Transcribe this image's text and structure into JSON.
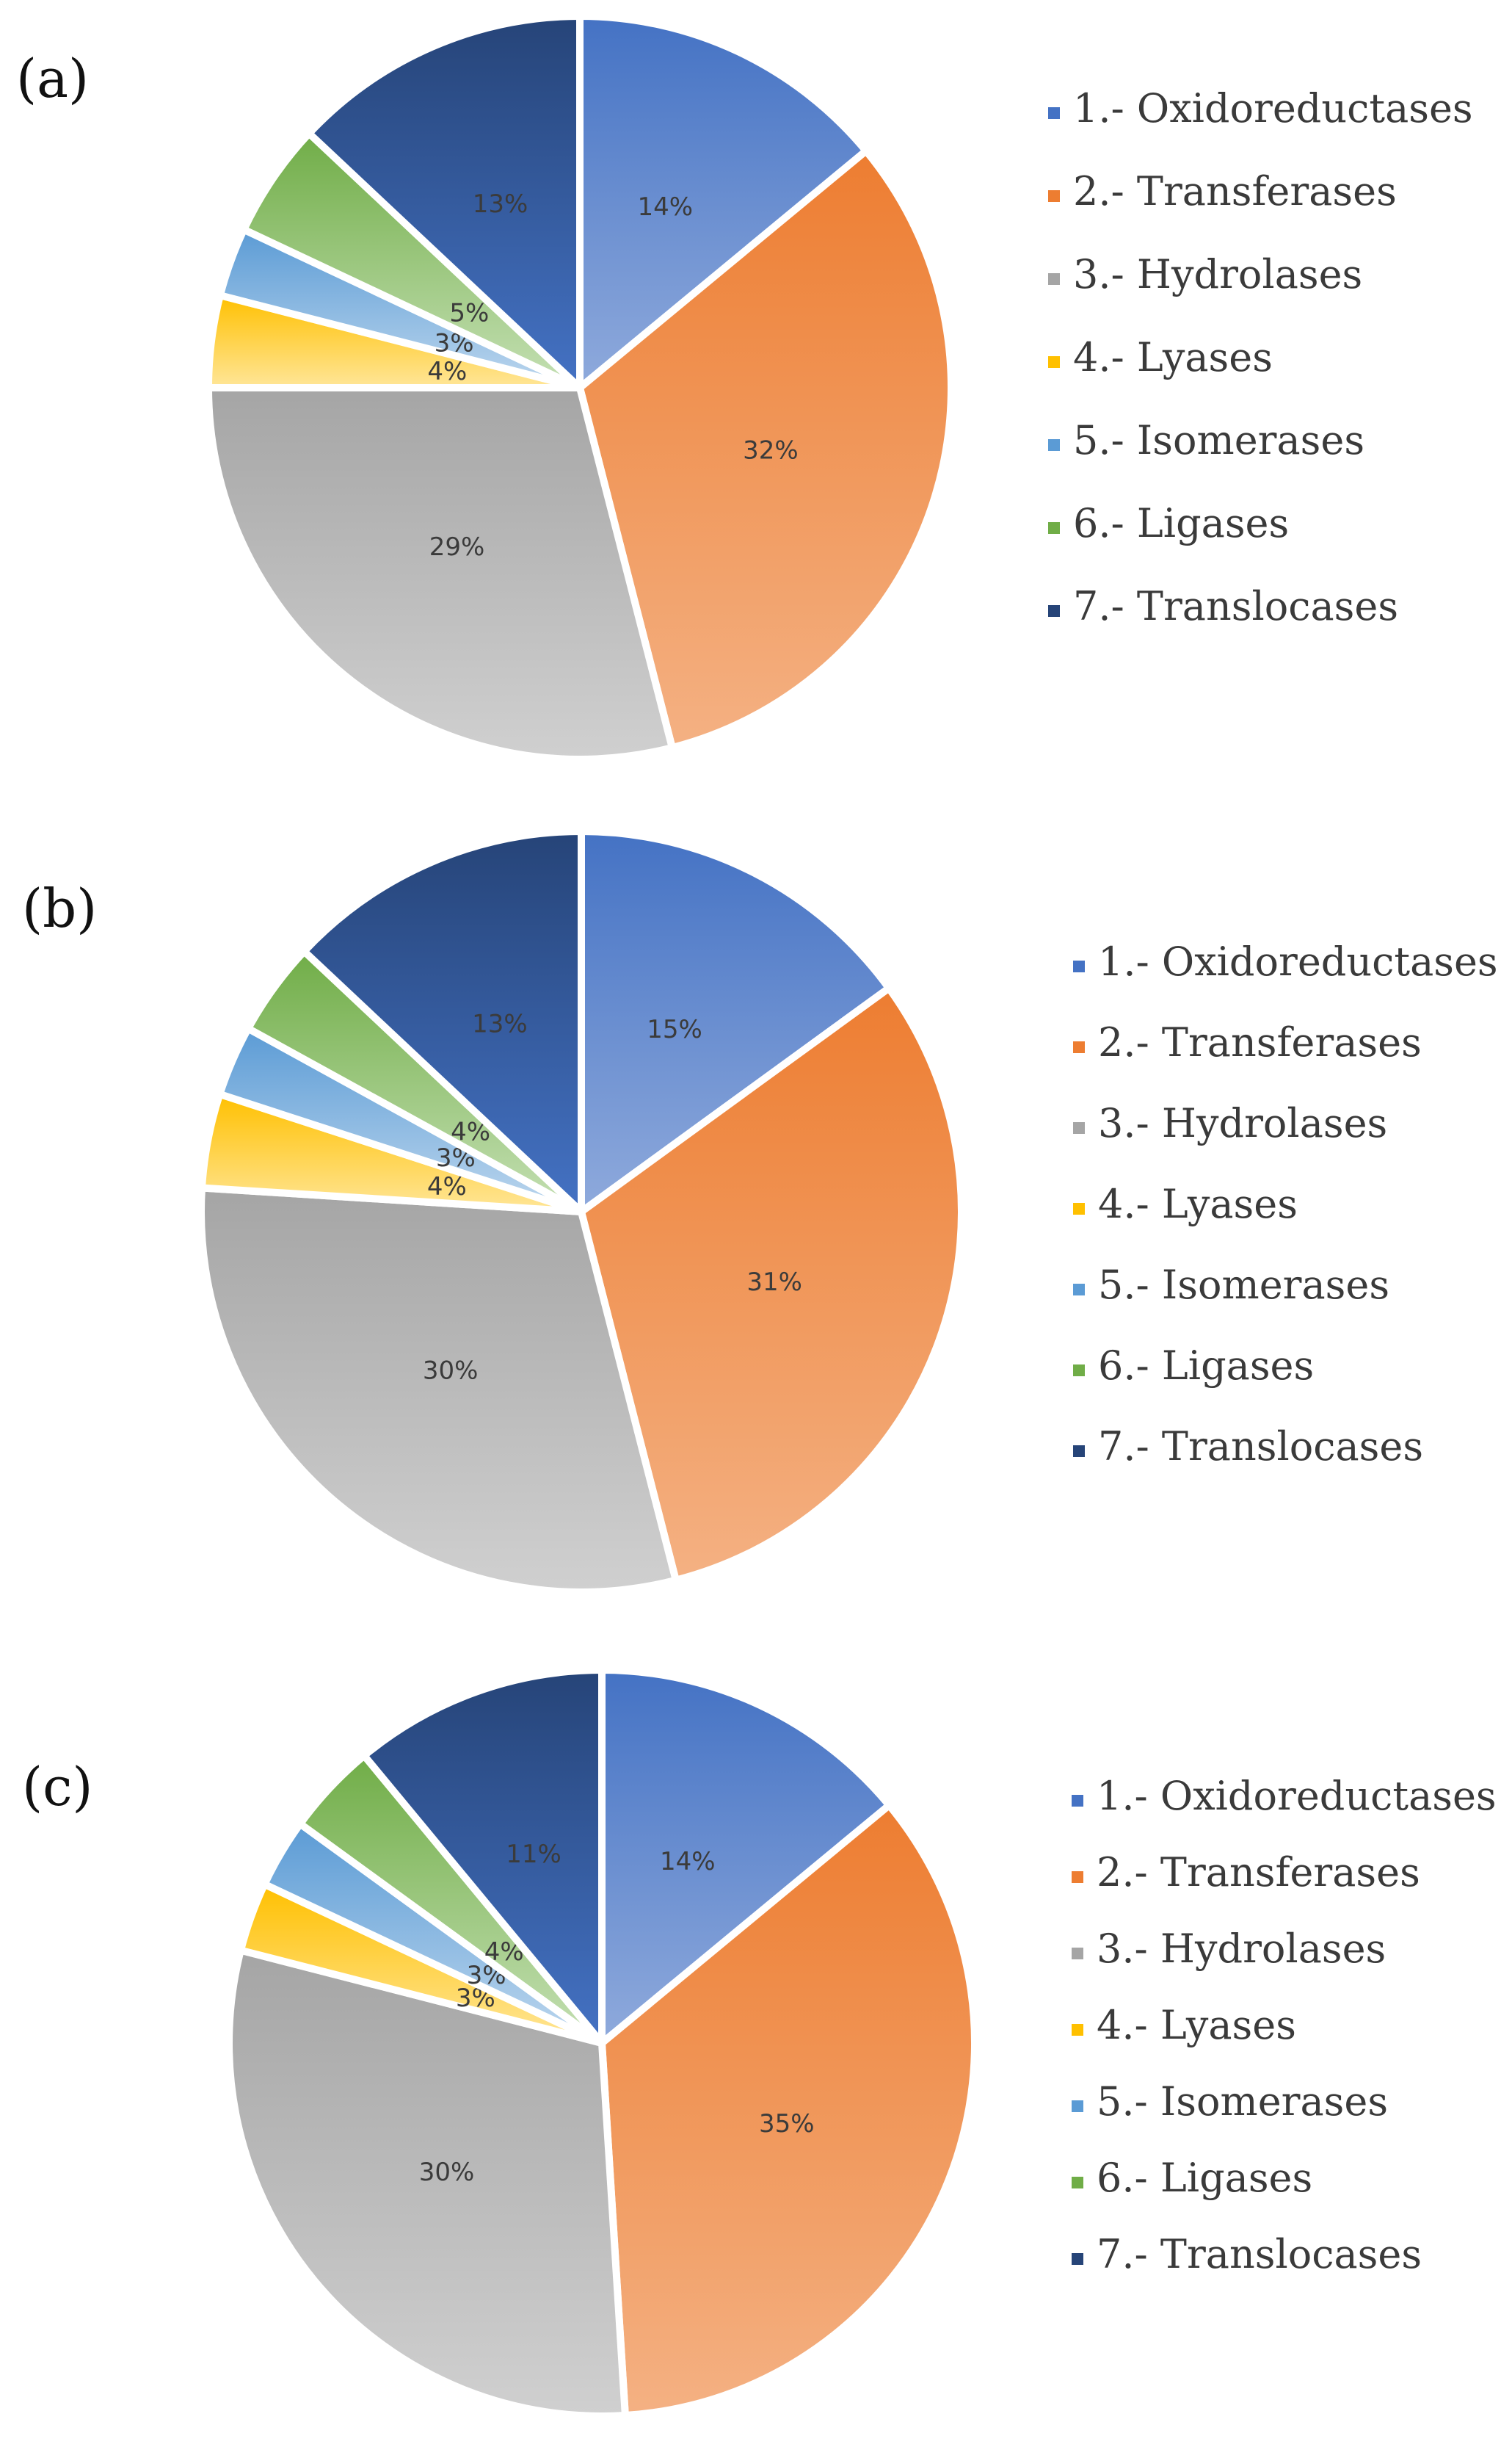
{
  "colors": {
    "c1_top": "#4472C4",
    "c1_bot": "#8FAADC",
    "c2_top": "#ED7D31",
    "c2_bot": "#F4B183",
    "c3_top": "#A5A5A5",
    "c3_bot": "#D0D0D0",
    "c4_top": "#FFC000",
    "c4_bot": "#FFE699",
    "c5_top": "#5B9BD5",
    "c5_bot": "#BDD7EE",
    "c6_top": "#70AD47",
    "c6_bot": "#C5E0B4",
    "c7_top": "#264478",
    "c7_bot": "#4472C4"
  },
  "chart_data": [
    {
      "type": "pie",
      "panel_label": "(a)",
      "categories": [
        "1.- Oxidoreductases",
        "2.- Transferases",
        "3.- Hydrolases",
        "4.- Lyases",
        "5.- Isomerases",
        "6.- Ligases",
        "7.- Translocases"
      ],
      "values": [
        14,
        32,
        29,
        4,
        3,
        5,
        13
      ],
      "labels": [
        "14%",
        "32%",
        "29%",
        "4%",
        "3%",
        "5%",
        "13%"
      ],
      "legend_position": "right"
    },
    {
      "type": "pie",
      "panel_label": "(b)",
      "categories": [
        "1.- Oxidoreductases",
        "2.- Transferases",
        "3.- Hydrolases",
        "4.- Lyases",
        "5.- Isomerases",
        "6.- Ligases",
        "7.- Translocases"
      ],
      "values": [
        15,
        31,
        30,
        4,
        3,
        4,
        13
      ],
      "labels": [
        "15%",
        "31%",
        "30%",
        "4%",
        "3%",
        "4%",
        "13%"
      ],
      "legend_position": "right"
    },
    {
      "type": "pie",
      "panel_label": "(c)",
      "categories": [
        "1.- Oxidoreductases",
        "2.- Transferases",
        "3.- Hydrolases",
        "4.- Lyases",
        "5.- Isomerases",
        "6.- Ligases",
        "7.- Translocases"
      ],
      "values": [
        14,
        35,
        30,
        3,
        3,
        4,
        11
      ],
      "labels": [
        "14%",
        "35%",
        "30%",
        "3%",
        "3%",
        "4%",
        "11%"
      ],
      "legend_position": "right"
    }
  ]
}
